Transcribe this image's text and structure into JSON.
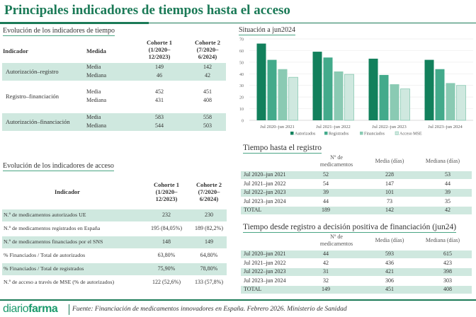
{
  "title": "Principales indicadores de tiempos hasta el acceso",
  "tiempo": {
    "title": "Evolución de los indicadores de tiempo",
    "headers": [
      "Indicador",
      "Medida",
      "Cohorte 1\n(1/2020–\n12/2023)",
      "Cohorte 2\n(7/2020–\n6/2024)"
    ],
    "rows": [
      {
        "indicador": "Autorización–registro",
        "medidas": [
          "Media",
          "Mediana"
        ],
        "c1": [
          "149",
          "46"
        ],
        "c2": [
          "142",
          "42"
        ]
      },
      {
        "indicador": "Registro–financiación",
        "medidas": [
          "Media",
          "Mediana"
        ],
        "c1": [
          "452",
          "431"
        ],
        "c2": [
          "451",
          "408"
        ]
      },
      {
        "indicador": "Autorización–financiación",
        "medidas": [
          "Media",
          "Mediana"
        ],
        "c1": [
          "583",
          "544"
        ],
        "c2": [
          "558",
          "503"
        ]
      }
    ]
  },
  "acceso": {
    "title": "Evolución de los indicadores de acceso",
    "headers": [
      "Indicador",
      "Cohorte 1\n(1/2020–\n12/2023)",
      "Cohorte 2\n(7/2020–\n6/2024)"
    ],
    "rows": [
      [
        "N.º de medicamentos autorizados UE",
        "232",
        "230"
      ],
      [
        "N.º de medicamentos registrados en España",
        "195 (84,05%)",
        "189 (82,2%)"
      ],
      [
        "N.º de medicamentos financiados por el SNS",
        "148",
        "149"
      ],
      [
        "% Financiados / Total de autorizados",
        "63,80%",
        "64,80%"
      ],
      [
        "% Financiados / Total de registrados",
        "75,90%",
        "78,80%"
      ],
      [
        "N.º de acceso a través de MSE (% de autorizados)",
        "122 (52,6%)",
        "133 (57,8%)"
      ]
    ]
  },
  "chart_data": {
    "type": "bar",
    "title": "Situación a jun2024",
    "categories": [
      "Jul 2020–jun 2021",
      "Jul 2021–jun 2022",
      "Jul 2022–jun 2023",
      "Jul 2023–jun 2024"
    ],
    "series": [
      {
        "name": "Autorizados",
        "values": [
          66,
          59,
          53,
          52
        ],
        "color": "#12805c"
      },
      {
        "name": "Registrados",
        "values": [
          52,
          54,
          39,
          44
        ],
        "color": "#43aa8b"
      },
      {
        "name": "Financiados",
        "values": [
          44,
          42,
          31,
          32
        ],
        "color": "#8acab3"
      },
      {
        "name": "Acceso MSE",
        "values": [
          37,
          39.5,
          27,
          30
        ],
        "color": "#cfe8df"
      }
    ],
    "ylim": [
      0,
      70
    ],
    "yticks": [
      0,
      10,
      20,
      30,
      40,
      50,
      60,
      70
    ],
    "grid": true,
    "legend": "bottom"
  },
  "registro": {
    "title": "Tiempo hasta el registro",
    "headers": [
      "",
      "Nº de\nmedicamentos",
      "Media (días)",
      "Mediana (días)"
    ],
    "rows": [
      [
        "Jul 2020–jun 2021",
        "52",
        "228",
        "53"
      ],
      [
        "Jul 2021–jun 2022",
        "54",
        "147",
        "44"
      ],
      [
        "Jul 2022–jun 2023",
        "39",
        "101",
        "39"
      ],
      [
        "Jul 2023–jun 2024",
        "44",
        "73",
        "35"
      ],
      [
        "TOTAL",
        "189",
        "142",
        "42"
      ]
    ]
  },
  "financiacion": {
    "title": "Tiempo desde registro a decisión positiva de financiación (jun24)",
    "headers": [
      "",
      "Nº de\nmedicamentos",
      "Media (días)",
      "Mediana (días)"
    ],
    "rows": [
      [
        "Jul 2020–jun 2021",
        "44",
        "593",
        "615"
      ],
      [
        "Jul 2021–jun 2022",
        "42",
        "436",
        "423"
      ],
      [
        "Jul 2022–jun 2023",
        "31",
        "421",
        "398"
      ],
      [
        "Jul 2023–jun 2024",
        "32",
        "306",
        "303"
      ],
      [
        "TOTAL",
        "149",
        "451",
        "408"
      ]
    ]
  },
  "footer": {
    "logo_light": "diario",
    "logo_bold": "farma",
    "source": "Fuente: Financiación de medicamentos innovadores en España. Febrero 2026. Ministerio de Sanidad"
  }
}
